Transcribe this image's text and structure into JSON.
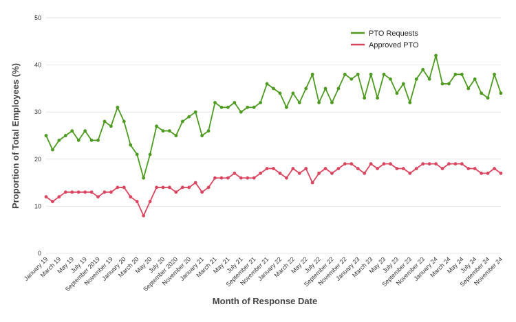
{
  "chart_data": {
    "type": "line",
    "xlabel": "Month of Response Date",
    "ylabel": "Proportion of Total Employees (%)",
    "ylim": [
      0,
      50
    ],
    "yticks": [
      0,
      10,
      20,
      30,
      40,
      50
    ],
    "grid": "horizontal",
    "legend_position": "top-right",
    "x": [
      "January 19",
      "February 19",
      "March 19",
      "April 19",
      "May 19",
      "June 19",
      "July 19",
      "August 19",
      "September 2019",
      "October 19",
      "November 19",
      "December 19",
      "January 20",
      "February 20",
      "March 20",
      "April 20",
      "May 20",
      "June 20",
      "July 20",
      "August 20",
      "September 2020",
      "October 20",
      "November 20",
      "December 20",
      "January 21",
      "February 21",
      "March 21",
      "April 21",
      "May 21",
      "June 21",
      "July 21",
      "August 21",
      "September 21",
      "October 21",
      "November 21",
      "December 21",
      "January 22",
      "February 22",
      "March 22",
      "April 22",
      "May 22",
      "June 22",
      "July 22",
      "August 22",
      "September 22",
      "October 22",
      "November 22",
      "December 22",
      "January 23",
      "February 23",
      "March 23",
      "April 23",
      "May 23",
      "June 23",
      "July 23",
      "August 23",
      "September 23",
      "October 23",
      "November 23",
      "December 23",
      "January 24",
      "February 24",
      "March 24",
      "April 24",
      "May 24",
      "June 24",
      "July 24",
      "August 24",
      "September 24",
      "October 24",
      "November 24"
    ],
    "xtick_labels": [
      "January 19",
      "March 19",
      "May 19",
      "July 19",
      "September 2019",
      "November 19",
      "January 20",
      "March 20",
      "May 20",
      "July 20",
      "September 2020",
      "November 20",
      "January 21",
      "March 21",
      "May 21",
      "July 21",
      "September 21",
      "November 21",
      "January 22",
      "March 22",
      "May 22",
      "July 22",
      "September 22",
      "November 22",
      "January 23",
      "March 23",
      "May 23",
      "July 23",
      "September 23",
      "November 23",
      "January 24",
      "March 24",
      "May 24",
      "July 24",
      "September 24",
      "November 24"
    ],
    "series": [
      {
        "name": "PTO Requests",
        "color": "#4c9a1f",
        "values": [
          25,
          22,
          24,
          25,
          26,
          24,
          26,
          24,
          24,
          28,
          27,
          31,
          28,
          23,
          21,
          16,
          21,
          27,
          26,
          26,
          25,
          28,
          29,
          30,
          25,
          26,
          32,
          31,
          31,
          32,
          30,
          31,
          31,
          32,
          36,
          35,
          34,
          31,
          34,
          32,
          35,
          38,
          32,
          35,
          32,
          35,
          38,
          37,
          38,
          33,
          38,
          33,
          38,
          37,
          34,
          36,
          32,
          37,
          39,
          37,
          42,
          36,
          36,
          38,
          38,
          35,
          37,
          34,
          33,
          38,
          34
        ]
      },
      {
        "name": "Approved PTO",
        "color": "#d9455f",
        "values": [
          12,
          11,
          12,
          13,
          13,
          13,
          13,
          13,
          12,
          13,
          13,
          14,
          14,
          12,
          11,
          8,
          11,
          14,
          14,
          14,
          13,
          14,
          14,
          15,
          13,
          14,
          16,
          16,
          16,
          17,
          16,
          16,
          16,
          17,
          18,
          18,
          17,
          16,
          18,
          17,
          18,
          15,
          17,
          18,
          17,
          18,
          19,
          19,
          18,
          17,
          19,
          18,
          19,
          19,
          18,
          18,
          17,
          18,
          19,
          19,
          19,
          18,
          19,
          19,
          19,
          18,
          18,
          17,
          17,
          18,
          17
        ]
      }
    ]
  }
}
